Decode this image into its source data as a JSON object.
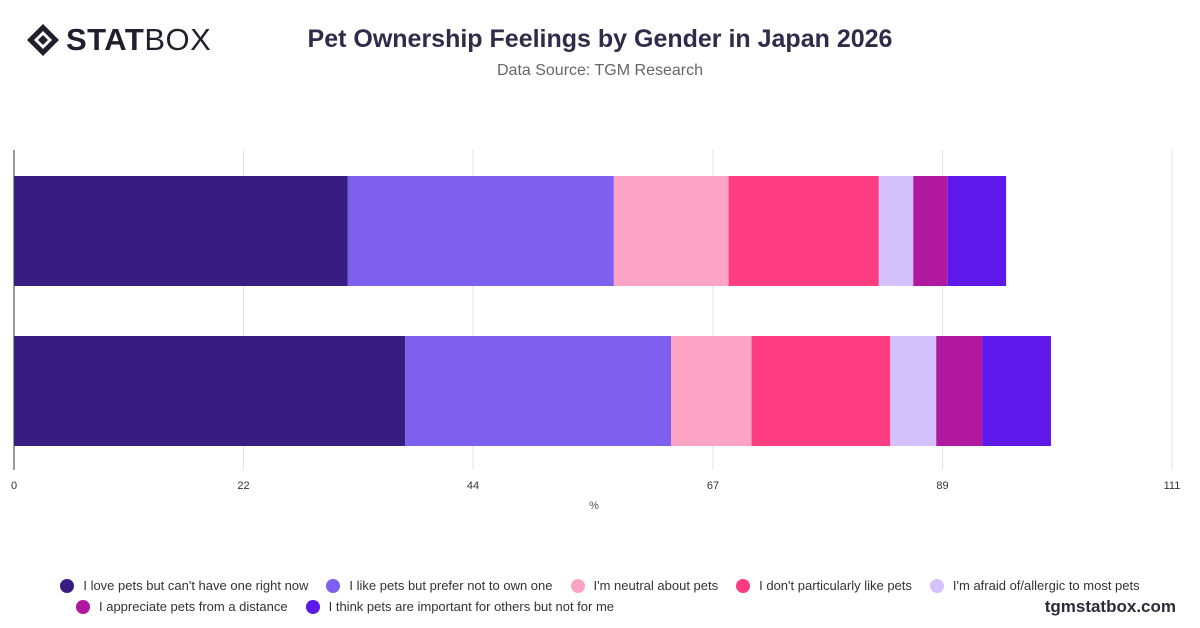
{
  "brand": {
    "bold": "STAT",
    "light": "BOX",
    "watermark": "tgmstatbox.com"
  },
  "header": {
    "title": "Pet Ownership Feelings by Gender in Japan 2026",
    "subtitle": "Data Source: TGM Research"
  },
  "chart_data": {
    "type": "bar",
    "orientation": "horizontal",
    "stacked": true,
    "title": "Pet Ownership Feelings by Gender in Japan 2026",
    "subtitle": "Data Source: TGM Research",
    "xlabel": "%",
    "ylabel": "",
    "xlim": [
      0,
      111
    ],
    "xticks": [
      0,
      22,
      44,
      67,
      89,
      111
    ],
    "grid": true,
    "legend": "bottom",
    "categories": [
      "",
      ""
    ],
    "series": [
      {
        "name": "I love pets but can't have one right now",
        "color": "#371c82",
        "values": [
          32,
          37.5
        ]
      },
      {
        "name": "I like pets but prefer not to own one",
        "color": "#7e60ef",
        "values": [
          25.5,
          25.5
        ]
      },
      {
        "name": "I'm neutral about pets",
        "color": "#fda4c4",
        "values": [
          11,
          7.7
        ]
      },
      {
        "name": "I don't particularly like pets",
        "color": "#fe3c80",
        "values": [
          14.4,
          13.3
        ]
      },
      {
        "name": "I'm afraid of/allergic to most pets",
        "color": "#d3c1fc",
        "values": [
          3.3,
          4.4
        ]
      },
      {
        "name": "I appreciate pets from a distance",
        "color": "#b0189f",
        "values": [
          3.3,
          4.4
        ]
      },
      {
        "name": "I think pets are important for others but not for me",
        "color": "#5e19ea",
        "values": [
          5.6,
          6.6
        ]
      }
    ]
  }
}
